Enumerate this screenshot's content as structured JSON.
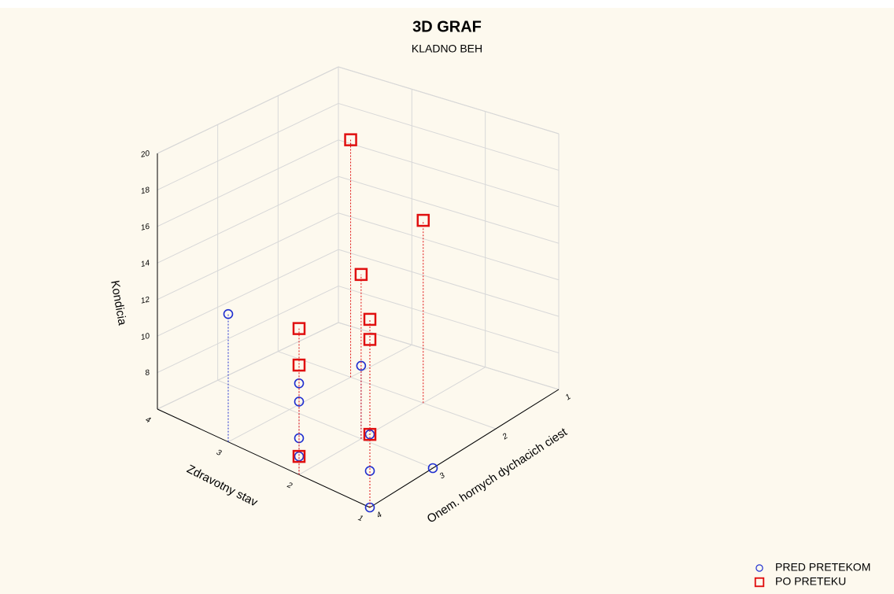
{
  "chart_data": {
    "type": "scatter3d",
    "title": "3D GRAF",
    "subtitle": "KLADNO BEH",
    "xlabel": "Zdravotny stav",
    "ylabel": "Onem. hornych dychacich ciest",
    "zlabel": "Kondicia",
    "xlim": [
      1,
      4
    ],
    "xticks": [
      1,
      2,
      3,
      4
    ],
    "ylim": [
      1,
      4
    ],
    "yticks": [
      1,
      2,
      3,
      4
    ],
    "zlim": [
      6,
      20
    ],
    "zticks": [
      8,
      10,
      12,
      14,
      16,
      18,
      20
    ],
    "grid": true,
    "legend": "lower right",
    "series": [
      {
        "name": "PRED PRETEKOM",
        "color": "#1f2fd0",
        "marker": "circle",
        "x": [
          3,
          2,
          2,
          2,
          2,
          1,
          1,
          1,
          1,
          2
        ],
        "y": [
          4,
          4,
          4,
          4,
          4,
          4,
          4,
          4,
          3,
          3
        ],
        "z": [
          13,
          7,
          8,
          10,
          11,
          6,
          8,
          10,
          6,
          10
        ]
      },
      {
        "name": "PO PRETEKU",
        "color": "#e01010",
        "marker": "square",
        "x": [
          2,
          2,
          2,
          1,
          1,
          1,
          2,
          2,
          3
        ],
        "y": [
          4,
          4,
          4,
          4,
          4,
          4,
          3,
          2,
          2
        ],
        "z": [
          7,
          12,
          14,
          10,
          15.2,
          16.3,
          15,
          16,
          19
        ]
      }
    ]
  }
}
